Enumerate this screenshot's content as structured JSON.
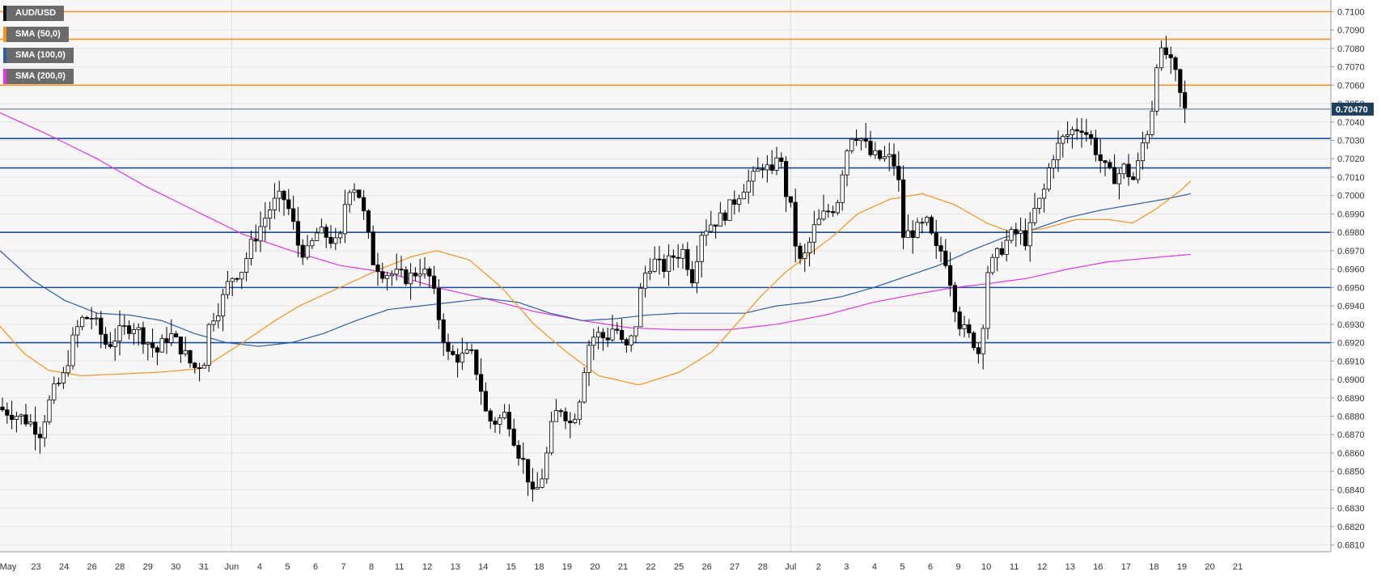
{
  "legend": [
    {
      "label": "AUD/USD",
      "color": "#111111"
    },
    {
      "label": "SMA (50,0)",
      "color": "#f7931e"
    },
    {
      "label": "SMA (100,0)",
      "color": "#2c5fa8"
    },
    {
      "label": "SMA (200,0)",
      "color": "#e635e6"
    }
  ],
  "price_label": "0.70470",
  "colors": {
    "background": "#f7f7f7",
    "grid": "#e4e4e4",
    "resistance_orange": "#f7931e",
    "support_blue": "#1a4f9c",
    "sma50": "#f7931e",
    "sma100": "#2c5fa8",
    "sma200": "#e635e6",
    "up_candle": "#ffffff",
    "down_candle": "#000000",
    "price_tag": "#1c3f5e"
  },
  "chart_data": {
    "type": "candlestick",
    "title": "AUD/USD",
    "ylim": [
      0.6805,
      0.7105
    ],
    "y_ticks": [
      "0.6810",
      "0.6820",
      "0.6830",
      "0.6840",
      "0.6850",
      "0.6860",
      "0.6870",
      "0.6880",
      "0.6890",
      "0.6900",
      "0.6910",
      "0.6920",
      "0.6930",
      "0.6940",
      "0.6950",
      "0.6960",
      "0.6970",
      "0.6980",
      "0.6990",
      "0.7000",
      "0.7010",
      "0.7020",
      "0.7030",
      "0.7040",
      "0.7050",
      "0.7060",
      "0.7070",
      "0.7080",
      "0.7090",
      "0.7100"
    ],
    "x_labels": [
      "May",
      "23",
      "24",
      "26",
      "28",
      "29",
      "30",
      "31",
      "Jun",
      "4",
      "5",
      "6",
      "7",
      "8",
      "11",
      "12",
      "13",
      "14",
      "15",
      "18",
      "19",
      "20",
      "21",
      "22",
      "25",
      "26",
      "27",
      "28",
      "Jul",
      "2",
      "3",
      "4",
      "5",
      "6",
      "9",
      "10",
      "11",
      "12",
      "13",
      "16",
      "17",
      "18",
      "19",
      "20",
      "21"
    ],
    "last_price": 0.7047,
    "horizontal_levels": [
      {
        "value": 0.71,
        "color": "orange"
      },
      {
        "value": 0.7085,
        "color": "orange"
      },
      {
        "value": 0.706,
        "color": "orange"
      },
      {
        "value": 0.7031,
        "color": "blue"
      },
      {
        "value": 0.7015,
        "color": "blue"
      },
      {
        "value": 0.698,
        "color": "blue"
      },
      {
        "value": 0.695,
        "color": "blue"
      },
      {
        "value": 0.692,
        "color": "blue"
      }
    ],
    "price_path": [
      [
        0,
        0.6885
      ],
      [
        12,
        0.6883
      ],
      [
        30,
        0.688
      ],
      [
        45,
        0.6876
      ],
      [
        55,
        0.6871
      ],
      [
        70,
        0.6892
      ],
      [
        85,
        0.6902
      ],
      [
        98,
        0.6925
      ],
      [
        108,
        0.6933
      ],
      [
        120,
        0.6934
      ],
      [
        138,
        0.6918
      ],
      [
        155,
        0.6926
      ],
      [
        170,
        0.693
      ],
      [
        185,
        0.6922
      ],
      [
        200,
        0.6915
      ],
      [
        215,
        0.6925
      ],
      [
        228,
        0.6918
      ],
      [
        245,
        0.6906
      ],
      [
        258,
        0.691
      ],
      [
        265,
        0.6932
      ],
      [
        278,
        0.694
      ],
      [
        290,
        0.6955
      ],
      [
        305,
        0.696
      ],
      [
        318,
        0.6975
      ],
      [
        330,
        0.6985
      ],
      [
        342,
        0.6995
      ],
      [
        355,
        0.7
      ],
      [
        365,
        0.699
      ],
      [
        375,
        0.6972
      ],
      [
        385,
        0.6968
      ],
      [
        398,
        0.698
      ],
      [
        410,
        0.6978
      ],
      [
        425,
        0.6972
      ],
      [
        435,
        0.7005
      ],
      [
        447,
        0.7005
      ],
      [
        458,
        0.6985
      ],
      [
        466,
        0.6965
      ],
      [
        480,
        0.6958
      ],
      [
        495,
        0.6957
      ],
      [
        510,
        0.6955
      ],
      [
        525,
        0.696
      ],
      [
        538,
        0.6955
      ],
      [
        550,
        0.693
      ],
      [
        560,
        0.6913
      ],
      [
        575,
        0.6912
      ],
      [
        588,
        0.6914
      ],
      [
        598,
        0.69
      ],
      [
        608,
        0.6878
      ],
      [
        620,
        0.6877
      ],
      [
        632,
        0.6882
      ],
      [
        645,
        0.6862
      ],
      [
        655,
        0.6853
      ],
      [
        665,
        0.6835
      ],
      [
        678,
        0.685
      ],
      [
        690,
        0.688
      ],
      [
        700,
        0.6885
      ],
      [
        712,
        0.6875
      ],
      [
        722,
        0.689
      ],
      [
        732,
        0.6918
      ],
      [
        742,
        0.6925
      ],
      [
        755,
        0.6922
      ],
      [
        766,
        0.693
      ],
      [
        778,
        0.6915
      ],
      [
        790,
        0.6925
      ],
      [
        800,
        0.6955
      ],
      [
        812,
        0.6965
      ],
      [
        825,
        0.696
      ],
      [
        838,
        0.6967
      ],
      [
        850,
        0.697
      ],
      [
        862,
        0.6955
      ],
      [
        872,
        0.698
      ],
      [
        885,
        0.6985
      ],
      [
        898,
        0.6988
      ],
      [
        910,
        0.6995
      ],
      [
        925,
        0.7005
      ],
      [
        938,
        0.701
      ],
      [
        950,
        0.7018
      ],
      [
        960,
        0.701
      ],
      [
        968,
        0.7028
      ],
      [
        975,
        0.7005
      ],
      [
        985,
        0.699
      ],
      [
        992,
        0.6962
      ],
      [
        1002,
        0.6968
      ],
      [
        1012,
        0.6982
      ],
      [
        1025,
        0.699
      ],
      [
        1040,
        0.6995
      ],
      [
        1050,
        0.7022
      ],
      [
        1060,
        0.7035
      ],
      [
        1072,
        0.703
      ],
      [
        1082,
        0.7022
      ],
      [
        1095,
        0.702
      ],
      [
        1105,
        0.702
      ],
      [
        1115,
        0.7015
      ],
      [
        1122,
        0.6978
      ],
      [
        1132,
        0.698
      ],
      [
        1142,
        0.6982
      ],
      [
        1152,
        0.6985
      ],
      [
        1162,
        0.697
      ],
      [
        1172,
        0.697
      ],
      [
        1180,
        0.6955
      ],
      [
        1190,
        0.6932
      ],
      [
        1200,
        0.6925
      ],
      [
        1210,
        0.692
      ],
      [
        1218,
        0.6912
      ],
      [
        1225,
        0.6958
      ],
      [
        1235,
        0.6965
      ],
      [
        1245,
        0.6972
      ],
      [
        1255,
        0.6978
      ],
      [
        1265,
        0.698
      ],
      [
        1275,
        0.6975
      ],
      [
        1285,
        0.6992
      ],
      [
        1295,
        0.7
      ],
      [
        1305,
        0.702
      ],
      [
        1318,
        0.703
      ],
      [
        1330,
        0.7035
      ],
      [
        1342,
        0.7038
      ],
      [
        1355,
        0.703
      ],
      [
        1365,
        0.702
      ],
      [
        1375,
        0.7012
      ],
      [
        1385,
        0.701
      ],
      [
        1395,
        0.7015
      ],
      [
        1408,
        0.7008
      ],
      [
        1418,
        0.7028
      ],
      [
        1428,
        0.704
      ],
      [
        1436,
        0.7075
      ],
      [
        1446,
        0.7078
      ],
      [
        1456,
        0.7068
      ],
      [
        1462,
        0.7062
      ],
      [
        1468,
        0.7045
      ],
      [
        1472,
        0.7047
      ]
    ],
    "sma50_path": [
      [
        0,
        0.6929
      ],
      [
        30,
        0.6914
      ],
      [
        60,
        0.6905
      ],
      [
        100,
        0.6902
      ],
      [
        150,
        0.6903
      ],
      [
        200,
        0.6904
      ],
      [
        250,
        0.6906
      ],
      [
        300,
        0.692
      ],
      [
        340,
        0.6932
      ],
      [
        370,
        0.694
      ],
      [
        420,
        0.695
      ],
      [
        470,
        0.696
      ],
      [
        510,
        0.6967
      ],
      [
        540,
        0.697
      ],
      [
        580,
        0.6965
      ],
      [
        620,
        0.695
      ],
      [
        660,
        0.693
      ],
      [
        700,
        0.6915
      ],
      [
        740,
        0.6902
      ],
      [
        790,
        0.6897
      ],
      [
        840,
        0.6904
      ],
      [
        880,
        0.6915
      ],
      [
        910,
        0.693
      ],
      [
        940,
        0.6945
      ],
      [
        970,
        0.6958
      ],
      [
        1000,
        0.6968
      ],
      [
        1030,
        0.6978
      ],
      [
        1060,
        0.699
      ],
      [
        1100,
        0.6998
      ],
      [
        1140,
        0.7001
      ],
      [
        1180,
        0.6995
      ],
      [
        1220,
        0.6985
      ],
      [
        1250,
        0.698
      ],
      [
        1290,
        0.6982
      ],
      [
        1330,
        0.6987
      ],
      [
        1370,
        0.6987
      ],
      [
        1400,
        0.6985
      ],
      [
        1430,
        0.6993
      ],
      [
        1460,
        0.7003
      ],
      [
        1472,
        0.7008
      ]
    ],
    "sma100_path": [
      [
        0,
        0.697
      ],
      [
        40,
        0.6954
      ],
      [
        80,
        0.6943
      ],
      [
        120,
        0.6936
      ],
      [
        160,
        0.6935
      ],
      [
        200,
        0.6932
      ],
      [
        240,
        0.6925
      ],
      [
        280,
        0.692
      ],
      [
        320,
        0.6918
      ],
      [
        360,
        0.692
      ],
      [
        400,
        0.6925
      ],
      [
        440,
        0.6932
      ],
      [
        480,
        0.6938
      ],
      [
        520,
        0.694
      ],
      [
        560,
        0.6942
      ],
      [
        600,
        0.6944
      ],
      [
        640,
        0.6942
      ],
      [
        680,
        0.6936
      ],
      [
        720,
        0.6932
      ],
      [
        760,
        0.6933
      ],
      [
        800,
        0.6935
      ],
      [
        840,
        0.6936
      ],
      [
        880,
        0.6936
      ],
      [
        920,
        0.6936
      ],
      [
        960,
        0.694
      ],
      [
        1000,
        0.6942
      ],
      [
        1040,
        0.6945
      ],
      [
        1080,
        0.695
      ],
      [
        1120,
        0.6956
      ],
      [
        1160,
        0.6962
      ],
      [
        1200,
        0.697
      ],
      [
        1240,
        0.6977
      ],
      [
        1280,
        0.6982
      ],
      [
        1320,
        0.6988
      ],
      [
        1360,
        0.6992
      ],
      [
        1400,
        0.6995
      ],
      [
        1440,
        0.6998
      ],
      [
        1472,
        0.7001
      ]
    ],
    "sma200_path": [
      [
        0,
        0.7045
      ],
      [
        60,
        0.7033
      ],
      [
        120,
        0.702
      ],
      [
        180,
        0.7005
      ],
      [
        240,
        0.6992
      ],
      [
        300,
        0.6979
      ],
      [
        360,
        0.697
      ],
      [
        420,
        0.6962
      ],
      [
        480,
        0.6958
      ],
      [
        540,
        0.695
      ],
      [
        600,
        0.6944
      ],
      [
        660,
        0.6937
      ],
      [
        720,
        0.6932
      ],
      [
        780,
        0.6928
      ],
      [
        840,
        0.6927
      ],
      [
        900,
        0.6927
      ],
      [
        960,
        0.693
      ],
      [
        1020,
        0.6935
      ],
      [
        1080,
        0.6942
      ],
      [
        1140,
        0.6947
      ],
      [
        1180,
        0.695
      ],
      [
        1220,
        0.6952
      ],
      [
        1270,
        0.6955
      ],
      [
        1320,
        0.696
      ],
      [
        1370,
        0.6964
      ],
      [
        1420,
        0.6966
      ],
      [
        1472,
        0.6968
      ]
    ]
  }
}
